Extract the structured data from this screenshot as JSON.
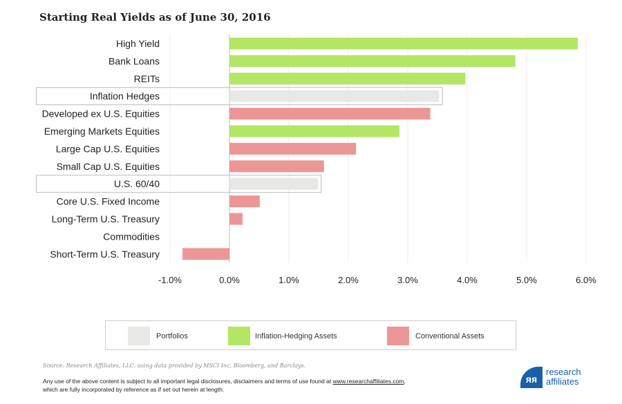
{
  "chart_data": {
    "type": "bar",
    "orientation": "horizontal",
    "title": "Starting Real Yields as of June 30, 2016",
    "categories": [
      "High Yield",
      "Bank Loans",
      "REITs",
      "Inflation Hedges",
      "Developed ex U.S. Equities",
      "Emerging Markets Equities",
      "Large Cap U.S. Equities",
      "Small Cap U.S. Equities",
      "U.S. 60/40",
      "Core U.S. Fixed Income",
      "Long-Term U.S. Treasury",
      "Commodities",
      "Short-Term U.S. Treasury"
    ],
    "values": [
      5.86,
      4.81,
      3.97,
      3.53,
      3.38,
      2.86,
      2.13,
      1.59,
      1.49,
      0.51,
      0.22,
      0.0,
      -0.79
    ],
    "groups": [
      "inflation",
      "inflation",
      "inflation",
      "portfolio",
      "conventional",
      "inflation",
      "conventional",
      "conventional",
      "portfolio",
      "conventional",
      "conventional",
      "inflation",
      "conventional"
    ],
    "xlim": [
      -1,
      6
    ],
    "xticks": [
      -1,
      0,
      1,
      2,
      3,
      4,
      5,
      6
    ],
    "xtick_labels": [
      "-1.0%",
      "0.0%",
      "1.0%",
      "2.0%",
      "3.0%",
      "4.0%",
      "5.0%",
      "6.0%"
    ],
    "grid": "vertical",
    "legend_placement": "bottom",
    "legend": [
      {
        "key": "portfolio",
        "label": "Portfolios",
        "color": "#e8e8e6"
      },
      {
        "key": "inflation",
        "label": "Inflation-Hedging Assets",
        "color": "#b3e665"
      },
      {
        "key": "conventional",
        "label": "Conventional Assets",
        "color": "#ec9696"
      }
    ]
  },
  "source": "Source: Research Affiliates, LLC, using data provided by MSCI Inc, Bloomberg, and Barclays.",
  "disclaimer": {
    "text1": "Any use of the above content is subject to all important legal disclosures, disclaimers and terms of use found at ",
    "link": "www.researchaffiliates.com",
    "text2": ",",
    "line2": "which are fully incorporated by reference as if set out herein at length."
  },
  "logo": {
    "line1": "research",
    "line2": "affiliates",
    "mark": "ᴙᴙ"
  }
}
